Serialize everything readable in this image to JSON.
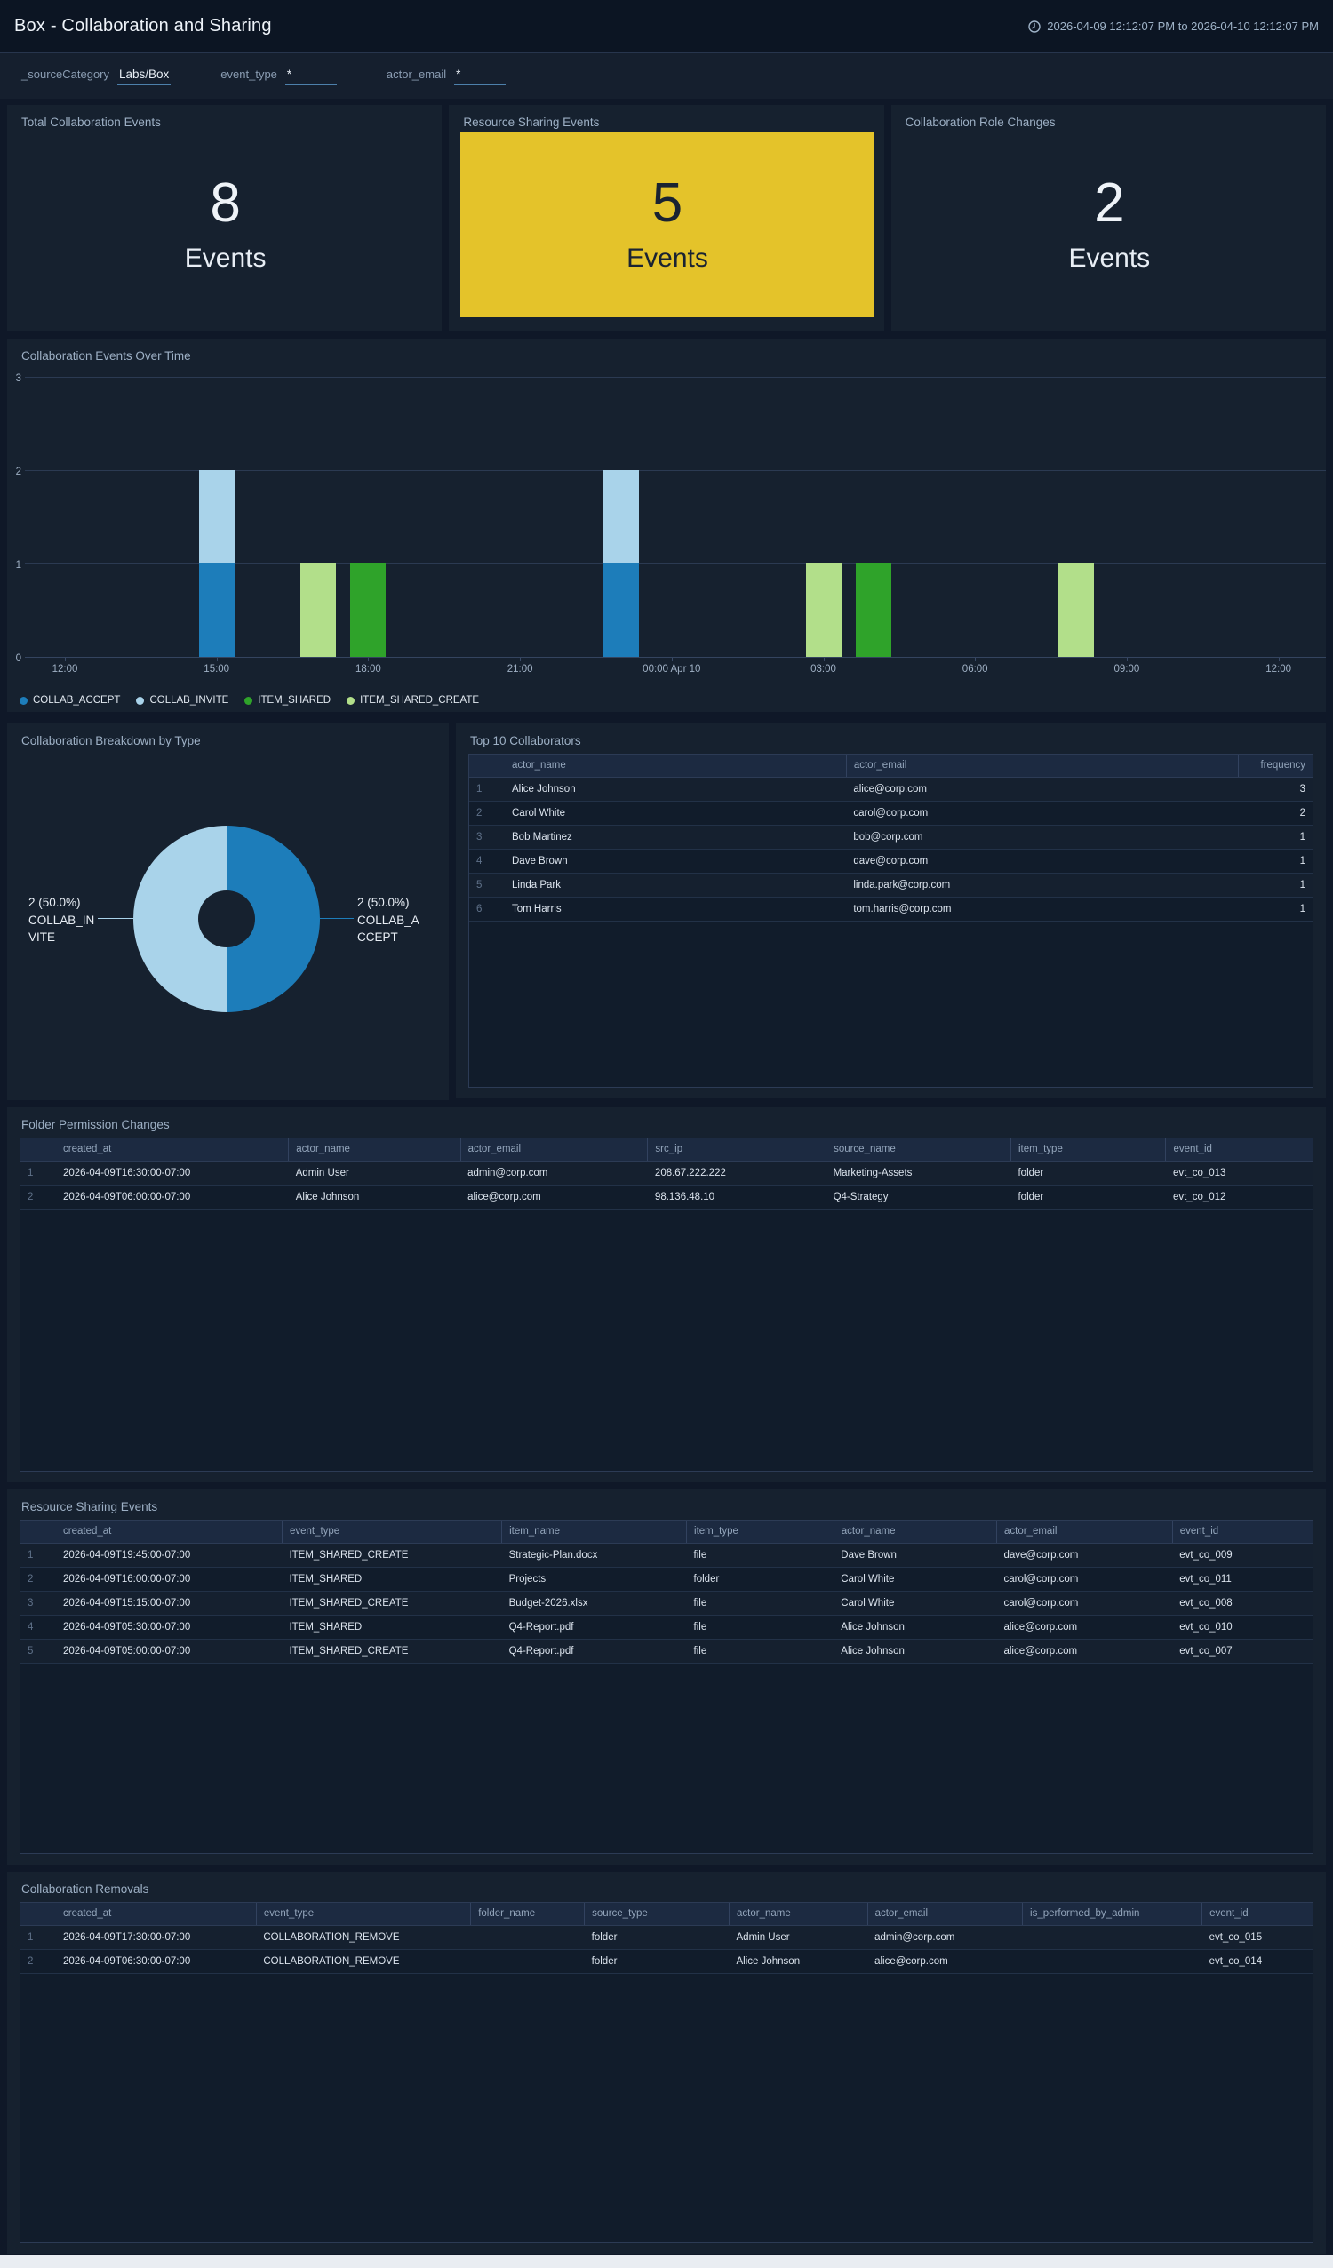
{
  "header": {
    "title": "Box - Collaboration and Sharing",
    "time_range": "2026-04-09 12:12:07 PM to 2026-04-10 12:12:07 PM"
  },
  "filters": [
    {
      "label": "_sourceCategory",
      "value": "Labs/Box"
    },
    {
      "label": "event_type",
      "value": "*"
    },
    {
      "label": "actor_email",
      "value": "*"
    }
  ],
  "stats": [
    {
      "title": "Total Collaboration Events",
      "value": "8",
      "unit": "Events",
      "highlight": false
    },
    {
      "title": "Resource Sharing Events",
      "value": "5",
      "unit": "Events",
      "highlight": true
    },
    {
      "title": "Collaboration Role Changes",
      "value": "2",
      "unit": "Events",
      "highlight": false
    }
  ],
  "colors": {
    "highlight_yellow": "#e4c32a",
    "series": {
      "COLLAB_ACCEPT": "#1d7dba",
      "COLLAB_INVITE": "#a9d3ea",
      "ITEM_SHARED": "#2fa32a",
      "ITEM_SHARED_CREATE": "#b2df8a"
    }
  },
  "chart_data": [
    {
      "type": "bar",
      "title": "Collaboration Events Over Time",
      "stacked": true,
      "grid": true,
      "ylim": [
        0,
        3
      ],
      "yticks": [
        0,
        1,
        2,
        3
      ],
      "x_axis_hours": [
        0,
        3,
        6,
        9,
        12,
        15,
        18,
        21,
        24
      ],
      "xticks": [
        "12:00",
        "15:00",
        "18:00",
        "21:00",
        "00:00 Apr 10",
        "03:00",
        "06:00",
        "09:00",
        "12:00"
      ],
      "legend": [
        "COLLAB_ACCEPT",
        "COLLAB_INVITE",
        "ITEM_SHARED",
        "ITEM_SHARED_CREATE"
      ],
      "legend_position": "bottom",
      "bars": [
        {
          "time": "15:00",
          "hour_offset": 3,
          "segments": [
            {
              "series": "COLLAB_ACCEPT",
              "value": 1
            },
            {
              "series": "COLLAB_INVITE",
              "value": 1
            }
          ]
        },
        {
          "time": "17:00",
          "hour_offset": 5,
          "segments": [
            {
              "series": "ITEM_SHARED_CREATE",
              "value": 1
            }
          ]
        },
        {
          "time": "18:00",
          "hour_offset": 6,
          "segments": [
            {
              "series": "ITEM_SHARED",
              "value": 1
            }
          ]
        },
        {
          "time": "23:00",
          "hour_offset": 11,
          "segments": [
            {
              "series": "COLLAB_ACCEPT",
              "value": 1
            },
            {
              "series": "COLLAB_INVITE",
              "value": 1
            }
          ]
        },
        {
          "time": "03:00",
          "hour_offset": 15,
          "segments": [
            {
              "series": "ITEM_SHARED_CREATE",
              "value": 1
            }
          ]
        },
        {
          "time": "04:00",
          "hour_offset": 16,
          "segments": [
            {
              "series": "ITEM_SHARED",
              "value": 1
            }
          ]
        },
        {
          "time": "08:00",
          "hour_offset": 20,
          "segments": [
            {
              "series": "ITEM_SHARED_CREATE",
              "value": 1
            }
          ]
        }
      ]
    },
    {
      "type": "pie",
      "title": "Collaboration Breakdown by Type",
      "donut": true,
      "slices": [
        {
          "label": "COLLAB_ACCEPT",
          "value": 2,
          "pct": "50.0",
          "side": "right"
        },
        {
          "label": "COLLAB_INVITE",
          "value": 2,
          "pct": "50.0",
          "side": "left"
        }
      ]
    }
  ],
  "tables": {
    "top_collaborators": {
      "title": "Top 10 Collaborators",
      "columns": [
        "actor_name",
        "actor_email",
        "frequency"
      ],
      "rows": [
        [
          "Alice Johnson",
          "alice@corp.com",
          "3"
        ],
        [
          "Carol White",
          "carol@corp.com",
          "2"
        ],
        [
          "Bob Martinez",
          "bob@corp.com",
          "1"
        ],
        [
          "Dave Brown",
          "dave@corp.com",
          "1"
        ],
        [
          "Linda Park",
          "linda.park@corp.com",
          "1"
        ],
        [
          "Tom Harris",
          "tom.harris@corp.com",
          "1"
        ]
      ]
    },
    "folder_permission_changes": {
      "title": "Folder Permission Changes",
      "columns": [
        "created_at",
        "actor_name",
        "actor_email",
        "src_ip",
        "source_name",
        "item_type",
        "event_id"
      ],
      "rows": [
        [
          "2026-04-09T16:30:00-07:00",
          "Admin User",
          "admin@corp.com",
          "208.67.222.222",
          "Marketing-Assets",
          "folder",
          "evt_co_013"
        ],
        [
          "2026-04-09T06:00:00-07:00",
          "Alice Johnson",
          "alice@corp.com",
          "98.136.48.10",
          "Q4-Strategy",
          "folder",
          "evt_co_012"
        ]
      ]
    },
    "resource_sharing_events": {
      "title": "Resource Sharing Events",
      "columns": [
        "created_at",
        "event_type",
        "item_name",
        "item_type",
        "actor_name",
        "actor_email",
        "event_id"
      ],
      "rows": [
        [
          "2026-04-09T19:45:00-07:00",
          "ITEM_SHARED_CREATE",
          "Strategic-Plan.docx",
          "file",
          "Dave Brown",
          "dave@corp.com",
          "evt_co_009"
        ],
        [
          "2026-04-09T16:00:00-07:00",
          "ITEM_SHARED",
          "Projects",
          "folder",
          "Carol White",
          "carol@corp.com",
          "evt_co_011"
        ],
        [
          "2026-04-09T15:15:00-07:00",
          "ITEM_SHARED_CREATE",
          "Budget-2026.xlsx",
          "file",
          "Carol White",
          "carol@corp.com",
          "evt_co_008"
        ],
        [
          "2026-04-09T05:30:00-07:00",
          "ITEM_SHARED",
          "Q4-Report.pdf",
          "file",
          "Alice Johnson",
          "alice@corp.com",
          "evt_co_010"
        ],
        [
          "2026-04-09T05:00:00-07:00",
          "ITEM_SHARED_CREATE",
          "Q4-Report.pdf",
          "file",
          "Alice Johnson",
          "alice@corp.com",
          "evt_co_007"
        ]
      ]
    },
    "collaboration_removals": {
      "title": "Collaboration Removals",
      "columns": [
        "created_at",
        "event_type",
        "folder_name",
        "source_type",
        "actor_name",
        "actor_email",
        "is_performed_by_admin",
        "event_id"
      ],
      "rows": [
        [
          "2026-04-09T17:30:00-07:00",
          "COLLABORATION_REMOVE",
          "",
          "folder",
          "Admin User",
          "admin@corp.com",
          "",
          "evt_co_015"
        ],
        [
          "2026-04-09T06:30:00-07:00",
          "COLLABORATION_REMOVE",
          "",
          "folder",
          "Alice Johnson",
          "alice@corp.com",
          "",
          "evt_co_014"
        ]
      ]
    }
  }
}
